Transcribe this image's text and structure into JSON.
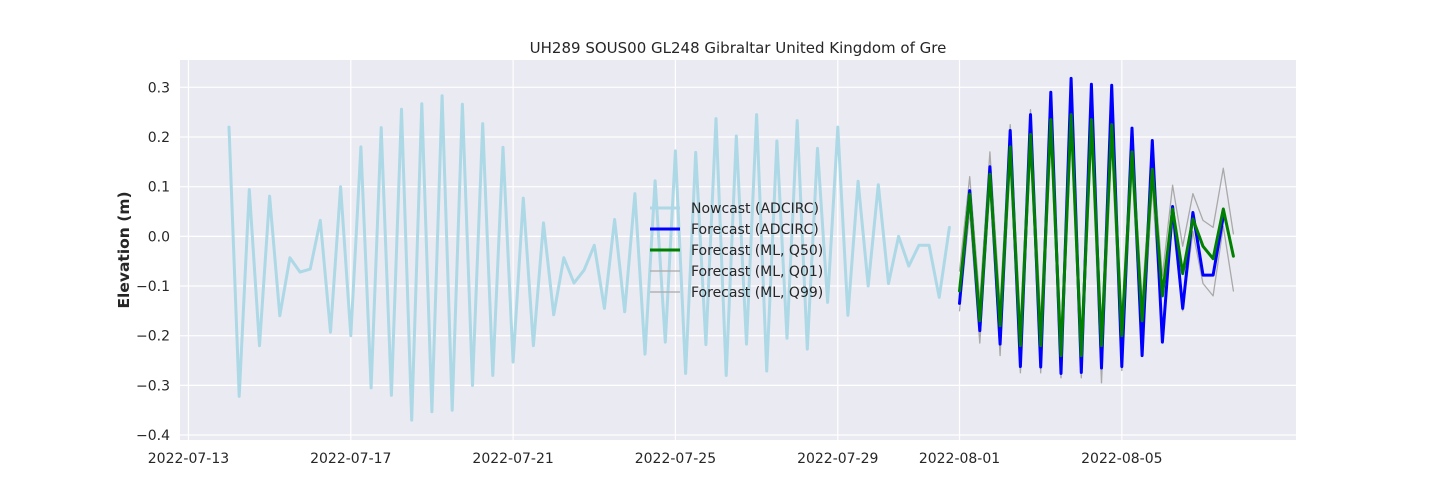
{
  "chart_data": {
    "type": "line",
    "title": "UH289 SOUS00 GL248 Gibraltar United Kingdom of Gre",
    "xlabel": "",
    "ylabel": "Elevation (m)",
    "xlim": [
      "2022-07-12T19:00",
      "2022-08-09T07:00"
    ],
    "ylim": [
      -0.41,
      0.355
    ],
    "x_ticks": [
      "2022-07-13",
      "2022-07-17",
      "2022-07-21",
      "2022-07-25",
      "2022-07-29",
      "2022-08-01",
      "2022-08-05"
    ],
    "y_ticks": [
      0.3,
      0.2,
      0.1,
      0.0,
      -0.1,
      -0.2,
      -0.3,
      -0.4
    ],
    "y_tick_labels": [
      "0.3",
      "0.2",
      "0.1",
      "0.0",
      "−0.1",
      "−0.2",
      "−0.3",
      "−0.4"
    ],
    "grid": true,
    "legend_position": "center-right",
    "series": [
      {
        "name": "Nowcast (ADCIRC)",
        "color": "#add8e6",
        "width": 3,
        "start": "2022-07-14T00:00",
        "step_hours": 6,
        "values": [
          0.22,
          -0.322,
          0.094,
          -0.22,
          0.081,
          -0.16,
          -0.043,
          -0.072,
          -0.066,
          0.032,
          -0.193,
          0.1,
          -0.2,
          0.18,
          -0.305,
          0.219,
          -0.32,
          0.256,
          -0.37,
          0.267,
          -0.353,
          0.283,
          -0.35,
          0.266,
          -0.3,
          0.227,
          -0.28,
          0.179,
          -0.253,
          0.077,
          -0.22,
          0.027,
          -0.158,
          -0.043,
          -0.094,
          -0.068,
          -0.018,
          -0.145,
          0.034,
          -0.152,
          0.086,
          -0.237,
          0.112,
          -0.213,
          0.172,
          -0.276,
          0.169,
          -0.218,
          0.237,
          -0.28,
          0.202,
          -0.217,
          0.245,
          -0.271,
          0.192,
          -0.205,
          0.233,
          -0.227,
          0.177,
          -0.133,
          0.22,
          -0.159,
          0.111,
          -0.1,
          0.104,
          -0.095,
          0.0,
          -0.06,
          -0.018,
          -0.018,
          -0.123,
          0.018
        ]
      },
      {
        "name": "Forecast (ADCIRC)",
        "color": "#0000ff",
        "width": 3,
        "start": "2022-08-01T00:00",
        "step_hours": 6,
        "values": [
          -0.135,
          0.092,
          -0.19,
          0.14,
          -0.217,
          0.213,
          -0.262,
          0.245,
          -0.263,
          0.29,
          -0.276,
          0.318,
          -0.274,
          0.306,
          -0.265,
          0.304,
          -0.262,
          0.218,
          -0.24,
          0.193,
          -0.213,
          0.06,
          -0.145,
          0.048,
          -0.078,
          -0.078,
          0.04
        ]
      },
      {
        "name": "Forecast (ML, Q50)",
        "color": "#008000",
        "width": 3,
        "start": "2022-08-01T00:00",
        "step_hours": 6,
        "values": [
          -0.11,
          0.085,
          -0.17,
          0.125,
          -0.18,
          0.18,
          -0.22,
          0.205,
          -0.22,
          0.235,
          -0.24,
          0.245,
          -0.24,
          0.235,
          -0.22,
          0.225,
          -0.2,
          0.17,
          -0.17,
          0.135,
          -0.12,
          0.055,
          -0.075,
          0.035,
          -0.02,
          -0.045,
          0.055,
          -0.04
        ]
      },
      {
        "name": "Forecast (ML, Q01)",
        "color": "#a9a9a9",
        "width": 1.3,
        "start": "2022-08-01T00:00",
        "step_hours": 6,
        "values": [
          -0.15,
          0.05,
          -0.215,
          0.1,
          -0.24,
          0.15,
          -0.275,
          0.18,
          -0.275,
          0.2,
          -0.285,
          0.21,
          -0.285,
          0.2,
          -0.295,
          0.19,
          -0.27,
          0.14,
          -0.24,
          0.1,
          -0.2,
          0.03,
          -0.15,
          0.01,
          -0.095,
          -0.12,
          0.02,
          -0.11
        ]
      },
      {
        "name": "Forecast (ML, Q99)",
        "color": "#a9a9a9",
        "width": 1.3,
        "start": "2022-08-01T00:00",
        "step_hours": 6,
        "values": [
          -0.07,
          0.12,
          -0.13,
          0.17,
          -0.14,
          0.225,
          -0.18,
          0.255,
          -0.17,
          0.27,
          -0.2,
          0.28,
          -0.2,
          0.27,
          -0.18,
          0.26,
          -0.16,
          0.2,
          -0.13,
          0.17,
          -0.08,
          0.103,
          -0.02,
          0.086,
          0.032,
          0.018,
          0.137,
          0.005
        ]
      }
    ]
  }
}
